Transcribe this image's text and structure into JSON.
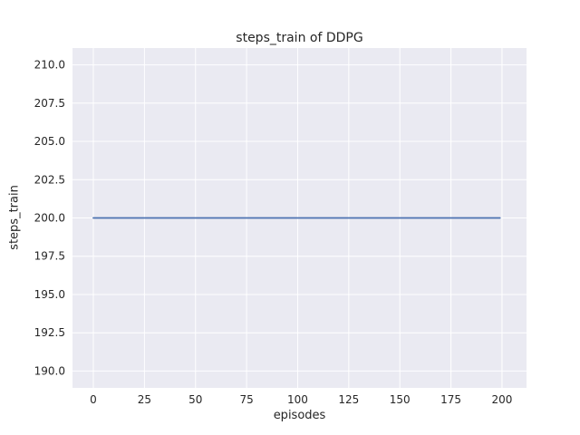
{
  "chart_data": {
    "type": "line",
    "title": "steps_train of DDPG",
    "xlabel": "episodes",
    "ylabel": "steps_train",
    "xticks": [
      0,
      25,
      50,
      75,
      100,
      125,
      150,
      175,
      200
    ],
    "xtick_labels": [
      "0",
      "25",
      "50",
      "75",
      "100",
      "125",
      "150",
      "175",
      "200"
    ],
    "yticks": [
      190.0,
      192.5,
      195.0,
      197.5,
      200.0,
      202.5,
      205.0,
      207.5,
      210.0
    ],
    "ytick_labels": [
      "190.0",
      "192.5",
      "195.0",
      "197.5",
      "200.0",
      "202.5",
      "205.0",
      "207.5",
      "210.0"
    ],
    "xlim": [
      -10.2,
      212
    ],
    "ylim": [
      188.9,
      211.1
    ],
    "grid": true,
    "legend": "none",
    "plot_bg": "#eaeaf2",
    "grid_color": "#ffffff",
    "figure_bg": "#ffffff",
    "text_color": "#262626",
    "series": [
      {
        "name": "steps_train",
        "x": [
          0,
          199
        ],
        "y": [
          200,
          200
        ],
        "color": "#4c72b0",
        "note": "constant value 200 steps per episode for all 200 episodes"
      }
    ]
  }
}
